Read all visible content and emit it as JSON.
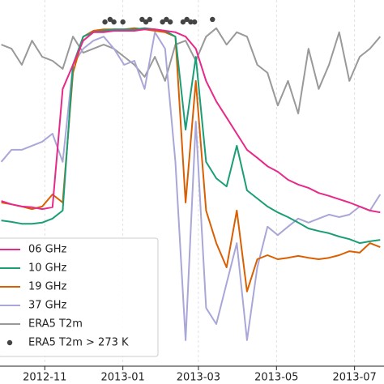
{
  "chart_data": {
    "type": "line",
    "x": [
      -34,
      -26,
      -18,
      -10,
      -2,
      6,
      14,
      22,
      30,
      38,
      46,
      54,
      62,
      70,
      78,
      86,
      94,
      102,
      110,
      118,
      126,
      134,
      142,
      150,
      158,
      166,
      174,
      182,
      190,
      198,
      206,
      214,
      222,
      230,
      238,
      246,
      254,
      262
    ],
    "xlim": [
      -35,
      265
    ],
    "xticks": [
      {
        "value": 0,
        "label": "2012-11"
      },
      {
        "value": 61,
        "label": "2013-01"
      },
      {
        "value": 120,
        "label": "2013-03"
      },
      {
        "value": 181,
        "label": "2013-05"
      },
      {
        "value": 242,
        "label": "2013-07"
      }
    ],
    "ylim": [
      0,
      100
    ],
    "grid": true,
    "legend": "lower left",
    "series": [
      {
        "name": "06 GHz",
        "color": "#e7298a",
        "values": [
          45.1,
          44.2,
          43.6,
          43.4,
          42.9,
          43.4,
          75.7,
          82.3,
          88.9,
          91.2,
          91.2,
          91.6,
          91.6,
          91.6,
          92.0,
          92.0,
          91.6,
          91.2,
          90.0,
          86.7,
          77.9,
          72.3,
          67.9,
          63.5,
          59.1,
          56.9,
          54.6,
          53.1,
          50.9,
          49.6,
          48.7,
          47.3,
          46.5,
          45.6,
          44.7,
          43.6,
          42.5,
          42.0
        ]
      },
      {
        "name": "10 GHz",
        "color": "#1b9e77",
        "values": [
          39.8,
          39.4,
          38.9,
          38.9,
          39.2,
          40.3,
          42.5,
          82.3,
          90.0,
          91.2,
          91.6,
          92.0,
          92.0,
          92.0,
          92.3,
          92.0,
          91.6,
          90.0,
          64.6,
          84.5,
          55.8,
          51.3,
          49.1,
          60.2,
          48.0,
          45.8,
          43.6,
          42.0,
          40.7,
          39.2,
          37.6,
          36.9,
          36.3,
          35.4,
          34.7,
          33.6,
          34.1,
          34.5
        ]
      },
      {
        "name": "19 GHz",
        "color": "#d95f02",
        "values": [
          44.7,
          44.2,
          43.6,
          42.9,
          43.6,
          46.9,
          44.7,
          80.1,
          90.0,
          91.6,
          92.0,
          92.0,
          92.0,
          92.3,
          92.0,
          91.6,
          91.2,
          90.0,
          44.7,
          77.9,
          42.5,
          33.6,
          27.0,
          42.5,
          20.4,
          29.2,
          30.3,
          29.2,
          29.6,
          30.1,
          29.6,
          29.2,
          29.6,
          30.3,
          31.4,
          31.0,
          33.6,
          32.5
        ]
      },
      {
        "name": "37 GHz",
        "color": "#a9a7d8",
        "values": [
          55.8,
          59.1,
          59.1,
          60.2,
          61.3,
          63.5,
          55.8,
          82.3,
          86.7,
          88.9,
          90.0,
          86.7,
          82.3,
          83.4,
          75.7,
          91.2,
          86.7,
          55.8,
          7.1,
          66.8,
          15.9,
          11.5,
          22.6,
          33.6,
          7.1,
          27.0,
          38.1,
          35.8,
          38.1,
          40.3,
          39.2,
          40.3,
          41.4,
          40.7,
          41.4,
          43.6,
          42.5,
          46.9
        ]
      },
      {
        "name": "ERA5 T2m",
        "color": "#999999",
        "values": [
          87.8,
          86.7,
          82.3,
          88.9,
          84.5,
          83.4,
          81.2,
          90.0,
          85.6,
          86.7,
          87.8,
          86.7,
          84.5,
          82.3,
          79.0,
          84.5,
          77.9,
          87.8,
          88.9,
          83.4,
          90.0,
          92.3,
          87.8,
          91.2,
          90.0,
          82.3,
          80.1,
          71.2,
          77.9,
          69.0,
          86.7,
          75.7,
          82.3,
          91.2,
          77.9,
          84.5,
          86.7,
          90.0
        ]
      },
      {
        "name": "ERA5 T2m > 273 K",
        "color": "#444444",
        "kind": "scatter",
        "x": [
          47,
          51,
          54,
          61,
          76,
          79,
          82,
          92,
          95,
          98,
          108,
          111,
          114,
          117,
          131
        ],
        "values": [
          94.0,
          94.7,
          94.0,
          94.0,
          94.7,
          94.0,
          94.7,
          94.0,
          94.7,
          94.0,
          94.0,
          94.7,
          94.0,
          94.0,
          94.7
        ]
      }
    ]
  }
}
